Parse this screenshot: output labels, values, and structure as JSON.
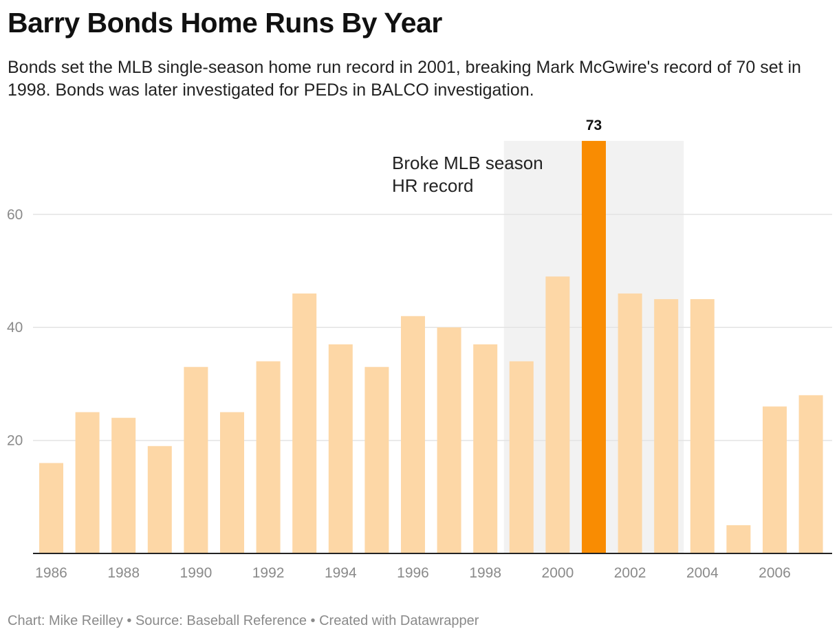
{
  "chart_data": {
    "type": "bar",
    "title": "Barry Bonds Home Runs By Year",
    "subtitle": "Bonds set the MLB single-season home run record in 2001, breaking Mark McGwire's record of 70 set in 1998. Bonds was later investigated for PEDs in BALCO investigation.",
    "categories": [
      "1986",
      "1987",
      "1988",
      "1989",
      "1990",
      "1991",
      "1992",
      "1993",
      "1994",
      "1995",
      "1996",
      "1997",
      "1998",
      "1999",
      "2000",
      "2001",
      "2002",
      "2003",
      "2004",
      "2005",
      "2006",
      "2007"
    ],
    "values": [
      16,
      25,
      24,
      19,
      33,
      25,
      34,
      46,
      37,
      33,
      42,
      40,
      37,
      34,
      49,
      73,
      46,
      45,
      45,
      5,
      26,
      28
    ],
    "x_tick_labels": [
      "1986",
      "1988",
      "1990",
      "1992",
      "1994",
      "1996",
      "1998",
      "2000",
      "2002",
      "2004",
      "2006"
    ],
    "y_ticks": [
      20,
      40,
      60
    ],
    "ylim": [
      0,
      73
    ],
    "highlight": {
      "category": "2001",
      "label": "73"
    },
    "shaded_range": [
      "1999",
      "2003"
    ],
    "annotation": {
      "line1": "Broke MLB season",
      "line2": "HR record"
    },
    "colors": {
      "bar": "#fdd7a6",
      "highlight": "#f98c02",
      "shade": "#f2f2f2",
      "grid": "#e3e3e3",
      "baseline": "#222222"
    },
    "xlabel": "",
    "ylabel": ""
  },
  "footer": "Chart: Mike Reilley • Source: Baseball Reference • Created with Datawrapper"
}
